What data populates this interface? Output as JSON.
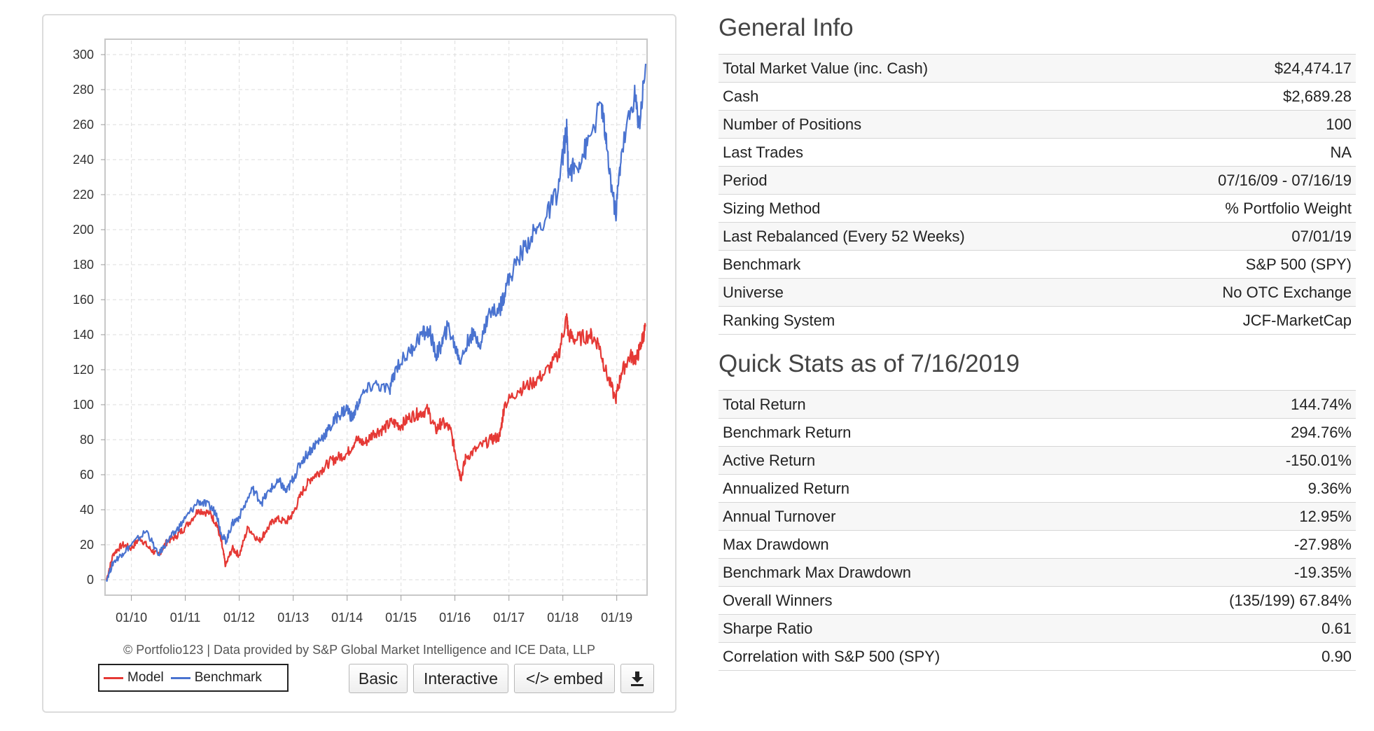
{
  "chart": {
    "credit": "© Portfolio123 | Data provided by S&P Global Market Intelligence and ICE Data, LLP",
    "legend": [
      {
        "label": "Model",
        "color": "#e53935"
      },
      {
        "label": "Benchmark",
        "color": "#4a73d0"
      }
    ],
    "buttons": {
      "basic": "Basic",
      "interactive": "Interactive",
      "embed": "</> embed",
      "download_icon": "download-icon"
    }
  },
  "chart_data": {
    "type": "line",
    "x_tick_labels": [
      "01/10",
      "01/11",
      "01/12",
      "01/13",
      "01/14",
      "01/15",
      "01/16",
      "01/17",
      "01/18",
      "01/19"
    ],
    "y_ticks": [
      0,
      20,
      40,
      60,
      80,
      100,
      120,
      140,
      160,
      180,
      200,
      220,
      240,
      260,
      280,
      300
    ],
    "xlim": [
      "2009-07-16",
      "2019-07-16"
    ],
    "ylim": [
      -8,
      308
    ],
    "grid": true,
    "legend_position": "bottom-left",
    "series": [
      {
        "name": "Model",
        "color": "#e53935",
        "points": [
          [
            "2009-07-16",
            0
          ],
          [
            "2009-09-01",
            15
          ],
          [
            "2009-11-01",
            20
          ],
          [
            "2010-01-01",
            18
          ],
          [
            "2010-03-01",
            24
          ],
          [
            "2010-05-01",
            18
          ],
          [
            "2010-07-01",
            14
          ],
          [
            "2010-09-01",
            22
          ],
          [
            "2010-11-01",
            25
          ],
          [
            "2011-01-01",
            30
          ],
          [
            "2011-04-01",
            40
          ],
          [
            "2011-06-15",
            38
          ],
          [
            "2011-08-01",
            32
          ],
          [
            "2011-09-01",
            22
          ],
          [
            "2011-10-01",
            8
          ],
          [
            "2011-11-15",
            18
          ],
          [
            "2012-01-01",
            14
          ],
          [
            "2012-03-01",
            30
          ],
          [
            "2012-05-15",
            22
          ],
          [
            "2012-07-01",
            28
          ],
          [
            "2012-09-01",
            35
          ],
          [
            "2012-11-15",
            33
          ],
          [
            "2013-01-01",
            38
          ],
          [
            "2013-03-01",
            50
          ],
          [
            "2013-05-01",
            58
          ],
          [
            "2013-07-01",
            62
          ],
          [
            "2013-09-01",
            67
          ],
          [
            "2013-11-01",
            70
          ],
          [
            "2014-01-01",
            72
          ],
          [
            "2014-03-01",
            80
          ],
          [
            "2014-05-01",
            78
          ],
          [
            "2014-07-01",
            84
          ],
          [
            "2014-09-01",
            86
          ],
          [
            "2014-11-01",
            90
          ],
          [
            "2015-01-01",
            88
          ],
          [
            "2015-03-01",
            93
          ],
          [
            "2015-05-01",
            95
          ],
          [
            "2015-07-01",
            97
          ],
          [
            "2015-08-25",
            85
          ],
          [
            "2015-10-01",
            90
          ],
          [
            "2015-12-01",
            86
          ],
          [
            "2016-01-15",
            68
          ],
          [
            "2016-02-11",
            58
          ],
          [
            "2016-03-15",
            70
          ],
          [
            "2016-06-01",
            75
          ],
          [
            "2016-09-01",
            80
          ],
          [
            "2016-11-01",
            82
          ],
          [
            "2016-12-01",
            100
          ],
          [
            "2017-03-01",
            108
          ],
          [
            "2017-06-01",
            112
          ],
          [
            "2017-09-01",
            118
          ],
          [
            "2017-12-01",
            128
          ],
          [
            "2018-01-26",
            150
          ],
          [
            "2018-02-08",
            140
          ],
          [
            "2018-04-01",
            137
          ],
          [
            "2018-07-01",
            140
          ],
          [
            "2018-09-01",
            135
          ],
          [
            "2018-10-15",
            120
          ],
          [
            "2018-12-24",
            103
          ],
          [
            "2019-02-01",
            118
          ],
          [
            "2019-04-01",
            128
          ],
          [
            "2019-05-15",
            126
          ],
          [
            "2019-06-15",
            135
          ],
          [
            "2019-07-16",
            144.74
          ]
        ]
      },
      {
        "name": "Benchmark",
        "color": "#4a73d0",
        "points": [
          [
            "2009-07-16",
            0
          ],
          [
            "2009-09-01",
            10
          ],
          [
            "2009-11-01",
            15
          ],
          [
            "2010-01-01",
            20
          ],
          [
            "2010-04-15",
            28
          ],
          [
            "2010-07-01",
            14
          ],
          [
            "2010-09-01",
            22
          ],
          [
            "2010-11-01",
            28
          ],
          [
            "2011-01-01",
            35
          ],
          [
            "2011-04-01",
            45
          ],
          [
            "2011-06-15",
            42
          ],
          [
            "2011-08-01",
            38
          ],
          [
            "2011-09-01",
            26
          ],
          [
            "2011-10-04",
            22
          ],
          [
            "2011-11-15",
            32
          ],
          [
            "2012-01-01",
            36
          ],
          [
            "2012-04-01",
            52
          ],
          [
            "2012-06-01",
            44
          ],
          [
            "2012-08-01",
            52
          ],
          [
            "2012-10-01",
            56
          ],
          [
            "2012-11-15",
            50
          ],
          [
            "2013-01-01",
            58
          ],
          [
            "2013-03-01",
            68
          ],
          [
            "2013-05-15",
            76
          ],
          [
            "2013-07-01",
            80
          ],
          [
            "2013-09-01",
            86
          ],
          [
            "2013-11-01",
            94
          ],
          [
            "2014-01-01",
            98
          ],
          [
            "2014-02-05",
            92
          ],
          [
            "2014-04-01",
            104
          ],
          [
            "2014-07-01",
            112
          ],
          [
            "2014-10-15",
            108
          ],
          [
            "2014-12-01",
            122
          ],
          [
            "2015-03-01",
            130
          ],
          [
            "2015-05-15",
            140
          ],
          [
            "2015-07-15",
            142
          ],
          [
            "2015-08-25",
            128
          ],
          [
            "2015-10-01",
            134
          ],
          [
            "2015-11-15",
            145
          ],
          [
            "2016-01-15",
            130
          ],
          [
            "2016-02-11",
            125
          ],
          [
            "2016-04-15",
            140
          ],
          [
            "2016-06-27",
            136
          ],
          [
            "2016-08-15",
            152
          ],
          [
            "2016-11-01",
            155
          ],
          [
            "2016-12-15",
            168
          ],
          [
            "2017-03-01",
            183
          ],
          [
            "2017-06-01",
            196
          ],
          [
            "2017-09-01",
            205
          ],
          [
            "2017-12-01",
            223
          ],
          [
            "2018-01-26",
            258
          ],
          [
            "2018-02-08",
            233
          ],
          [
            "2018-04-01",
            236
          ],
          [
            "2018-06-15",
            248
          ],
          [
            "2018-09-20",
            272
          ],
          [
            "2018-10-25",
            246
          ],
          [
            "2018-12-24",
            208
          ],
          [
            "2019-02-01",
            244
          ],
          [
            "2019-04-30",
            277
          ],
          [
            "2019-06-03",
            260
          ],
          [
            "2019-07-16",
            294.76
          ]
        ]
      }
    ]
  },
  "general": {
    "title": "General Info",
    "rows": [
      {
        "label": "Total Market Value (inc. Cash)",
        "value": "$24,474.17"
      },
      {
        "label": "Cash",
        "value": "$2,689.28"
      },
      {
        "label": "Number of Positions",
        "value": "100"
      },
      {
        "label": "Last Trades",
        "value": "NA"
      },
      {
        "label": "Period",
        "value": "07/16/09 - 07/16/19"
      },
      {
        "label": "Sizing Method",
        "value": "% Portfolio Weight"
      },
      {
        "label": "Last Rebalanced (Every 52 Weeks)",
        "value": "07/01/19"
      },
      {
        "label": "Benchmark",
        "value": "S&P 500 (SPY)"
      },
      {
        "label": "Universe",
        "value": "No OTC Exchange"
      },
      {
        "label": "Ranking System",
        "value": "JCF-MarketCap"
      }
    ]
  },
  "quick": {
    "title": "Quick Stats as of 7/16/2019",
    "rows": [
      {
        "label": "Total Return",
        "value": "144.74%"
      },
      {
        "label": "Benchmark Return",
        "value": "294.76%"
      },
      {
        "label": "Active Return",
        "value": "-150.01%"
      },
      {
        "label": "Annualized Return",
        "value": "9.36%"
      },
      {
        "label": "Annual Turnover",
        "value": "12.95%"
      },
      {
        "label": "Max Drawdown",
        "value": "-27.98%"
      },
      {
        "label": "Benchmark Max Drawdown",
        "value": "-19.35%"
      },
      {
        "label": "Overall Winners",
        "value": "(135/199) 67.84%"
      },
      {
        "label": "Sharpe Ratio",
        "value": "0.61"
      },
      {
        "label": "Correlation with S&P 500 (SPY)",
        "value": "0.90"
      }
    ]
  },
  "colors": {
    "link": "#1f4e99",
    "negative": "#cc1f1f"
  }
}
